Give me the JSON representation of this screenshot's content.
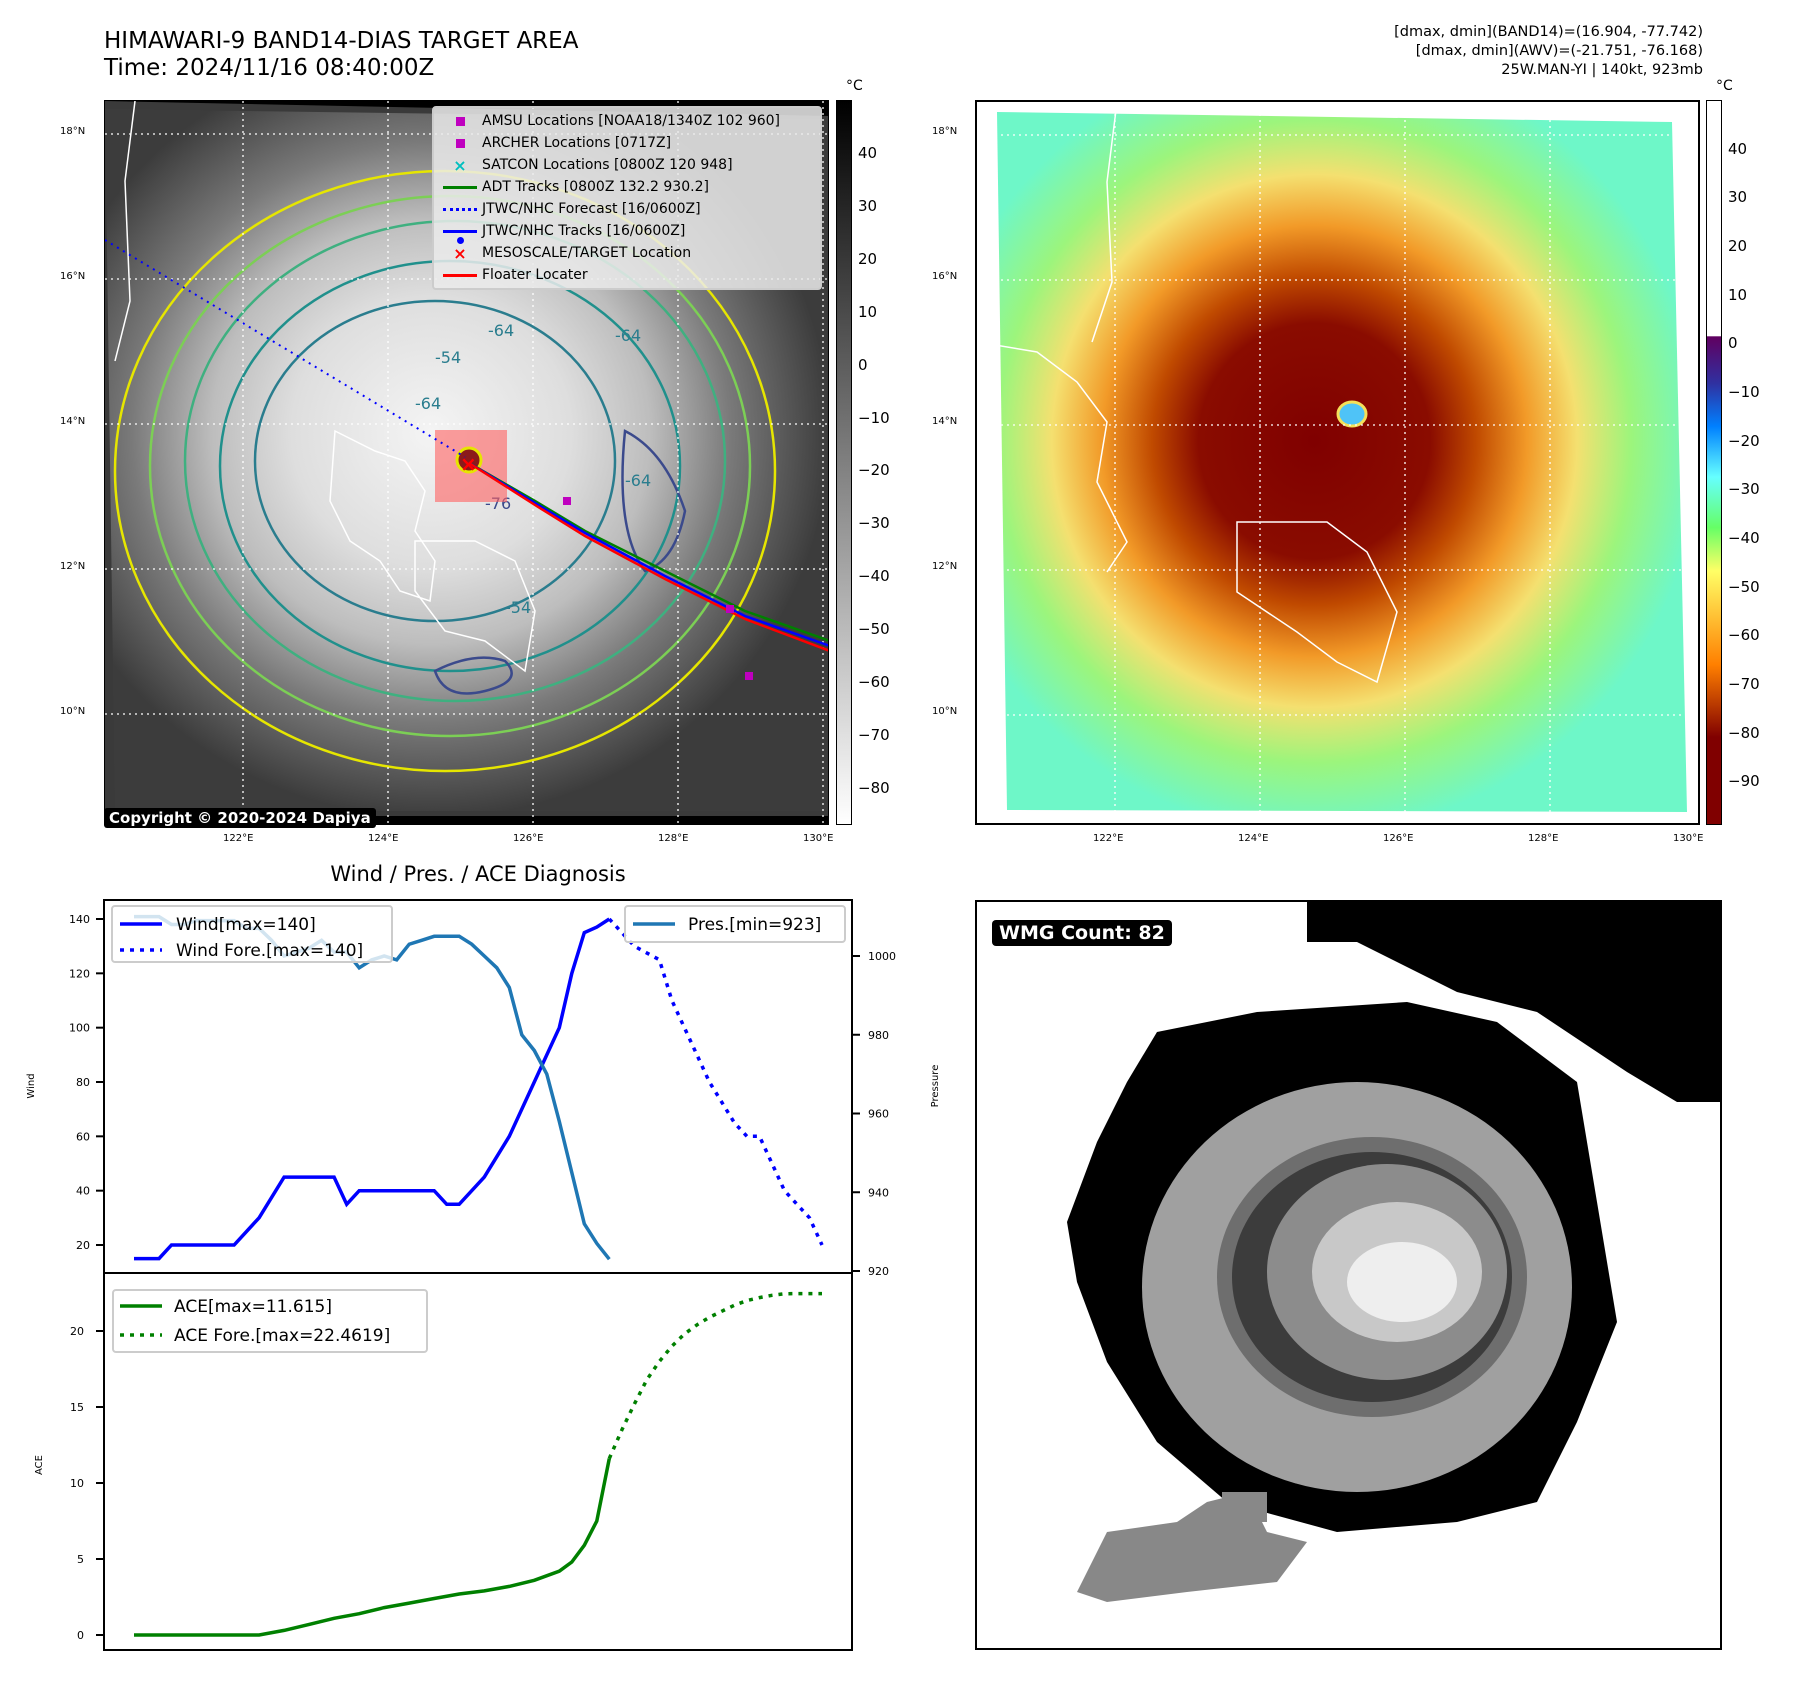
{
  "header": {
    "title_line1": "HIMAWARI-9 BAND14-DIAS TARGET AREA",
    "title_line2": "Time: 2024/11/16 08:40:00Z",
    "info_line1": "[dmax, dmin](BAND14)=(16.904, -77.742)",
    "info_line2": "[dmax, dmin](AWV)=(-21.751, -76.168)",
    "info_line3": "25W.MAN-YI | 140kt, 923mb"
  },
  "map_left": {
    "lat_ticks": [
      "18°N",
      "16°N",
      "14°N",
      "12°N",
      "10°N"
    ],
    "lon_ticks": [
      "122°E",
      "124°E",
      "126°E",
      "128°E",
      "130°E"
    ],
    "copyright": "Copyright © 2020-2024 Dapiya",
    "contour_labels": [
      "-64",
      "-54",
      "-64",
      "-76",
      "-64",
      "-54",
      "-64"
    ],
    "colorbar": {
      "unit": "°C",
      "ticks": [
        "40",
        "30",
        "20",
        "10",
        "0",
        "−10",
        "−20",
        "−30",
        "−40",
        "−50",
        "−60",
        "−70",
        "−80"
      ],
      "range": [
        -87,
        50
      ],
      "colors": [
        "#ffffff",
        "#000000"
      ]
    },
    "legend": [
      {
        "label": "AMSU Locations [NOAA18/1340Z 102 960]",
        "symbol": "square",
        "color": "#bf00bf"
      },
      {
        "label": "ARCHER Locations [0717Z]",
        "symbol": "square",
        "color": "#bf00bf"
      },
      {
        "label": "SATCON Locations [0800Z 120 948]",
        "symbol": "x",
        "color": "#00bfbf"
      },
      {
        "label": "ADT Tracks [0800Z 132.2 930.2]",
        "symbol": "line",
        "color": "#008000"
      },
      {
        "label": "JTWC/NHC Forecast [16/0600Z]",
        "symbol": "dotted",
        "color": "#0000ff"
      },
      {
        "label": "JTWC/NHC Tracks [16/0600Z]",
        "symbol": "line-dot",
        "color": "#0000ff"
      },
      {
        "label": "MESOSCALE/TARGET Location",
        "symbol": "x",
        "color": "#ff0000"
      },
      {
        "label": "Floater Locater",
        "symbol": "line",
        "color": "#ff0000"
      }
    ]
  },
  "map_right": {
    "lat_ticks": [
      "18°N",
      "16°N",
      "14°N",
      "12°N",
      "10°N"
    ],
    "lon_ticks": [
      "122°E",
      "124°E",
      "126°E",
      "128°E",
      "130°E"
    ],
    "colorbar": {
      "unit": "°C",
      "ticks": [
        "40",
        "30",
        "20",
        "10",
        "0",
        "−10",
        "−20",
        "−30",
        "−40",
        "−50",
        "−60",
        "−70",
        "−80",
        "−90"
      ],
      "range": [
        -99,
        50
      ],
      "colors": [
        "#800000",
        "#ff7f00",
        "#ffff66",
        "#66ff66",
        "#66ffff",
        "#0080ff",
        "#3030a0",
        "#600060"
      ]
    }
  },
  "wmg": {
    "badge": "WMG Count: 82"
  },
  "chart_data": [
    {
      "type": "line",
      "title": "Wind / Pres. / ACE Diagnosis",
      "ylabel": "Wind",
      "y2label": "Pressure",
      "ylim": [
        10,
        146
      ],
      "y2lim": [
        920,
        1010
      ],
      "yticks": [
        "140",
        "120",
        "100",
        "80",
        "60",
        "40",
        "20"
      ],
      "y2ticks": [
        "1000",
        "980",
        "960",
        "940",
        "920"
      ],
      "x": [
        0,
        1,
        2,
        3,
        4,
        5,
        6,
        7,
        8,
        9,
        10,
        11,
        12,
        13,
        14,
        15,
        16,
        17,
        18,
        19,
        20,
        21,
        22,
        23,
        24,
        25,
        26,
        27,
        28,
        29,
        30,
        31,
        32,
        33,
        34,
        35,
        36,
        37,
        38,
        39,
        40,
        41,
        42,
        43,
        44,
        45,
        46,
        47,
        48,
        49,
        50,
        51,
        52,
        53,
        54
      ],
      "series": [
        {
          "name": "Wind[max=140]",
          "style": "solid",
          "color": "#0000ff",
          "axis": "left",
          "x": [
            0,
            2,
            3,
            5,
            8,
            10,
            12,
            14,
            16,
            17,
            18,
            20,
            22,
            24,
            25,
            26,
            28,
            30,
            32,
            34,
            35,
            36,
            37,
            38
          ],
          "values": [
            15,
            15,
            20,
            20,
            20,
            30,
            45,
            45,
            45,
            35,
            40,
            40,
            40,
            40,
            35,
            35,
            45,
            60,
            80,
            100,
            120,
            135,
            137,
            140
          ]
        },
        {
          "name": "Wind Fore.[max=140]",
          "style": "dotted",
          "color": "#0000ff",
          "axis": "left",
          "x": [
            38,
            40,
            42,
            43,
            44,
            45,
            46,
            48,
            49,
            50,
            51,
            52,
            53,
            54,
            55
          ],
          "values": [
            140,
            130,
            125,
            110,
            100,
            90,
            80,
            65,
            60,
            60,
            50,
            40,
            35,
            30,
            20
          ]
        },
        {
          "name": "Pres.[min=923]",
          "style": "solid",
          "color": "#1f77b4",
          "axis": "right",
          "x": [
            0,
            2,
            3,
            4,
            5,
            6,
            7,
            8,
            9,
            10,
            11,
            12,
            13,
            14,
            15,
            16,
            17,
            18,
            19,
            20,
            21,
            22,
            23,
            24,
            25,
            26,
            27,
            28,
            29,
            30,
            31,
            32,
            33,
            34,
            35,
            36,
            37,
            38
          ],
          "values": [
            1010,
            1010,
            1008,
            1008,
            1009,
            1009,
            1009,
            1009,
            1007,
            1007,
            1004,
            1000,
            1001,
            1002,
            1004,
            1001,
            1001,
            997,
            999,
            1000,
            999,
            1003,
            1004,
            1005,
            1005,
            1005,
            1003,
            1000,
            997,
            992,
            980,
            976,
            970,
            958,
            945,
            932,
            927,
            923
          ]
        }
      ]
    },
    {
      "type": "line",
      "title": "",
      "ylabel": "ACE",
      "ylim": [
        -1,
        23.5
      ],
      "yticks": [
        "20",
        "15",
        "10",
        "5",
        "0"
      ],
      "series": [
        {
          "name": "ACE[max=11.615]",
          "style": "solid",
          "color": "#008000",
          "x": [
            0,
            4,
            6,
            8,
            10,
            12,
            14,
            16,
            18,
            20,
            22,
            24,
            26,
            28,
            30,
            32,
            34,
            35,
            36,
            37,
            38
          ],
          "values": [
            0,
            0,
            0,
            0,
            0,
            0.3,
            0.7,
            1.1,
            1.4,
            1.8,
            2.1,
            2.4,
            2.7,
            2.9,
            3.2,
            3.6,
            4.2,
            4.8,
            5.9,
            7.5,
            11.615
          ]
        },
        {
          "name": "ACE Fore.[max=22.4619]",
          "style": "dotted",
          "color": "#008000",
          "x": [
            38,
            39,
            40,
            41,
            42,
            43,
            44,
            45,
            46,
            47,
            48,
            49,
            50,
            51,
            52,
            53,
            54,
            55
          ],
          "values": [
            11.615,
            13.5,
            15.2,
            16.8,
            18.0,
            19.0,
            19.8,
            20.4,
            20.9,
            21.3,
            21.7,
            22.0,
            22.2,
            22.35,
            22.45,
            22.46,
            22.46,
            22.46
          ]
        }
      ]
    }
  ]
}
